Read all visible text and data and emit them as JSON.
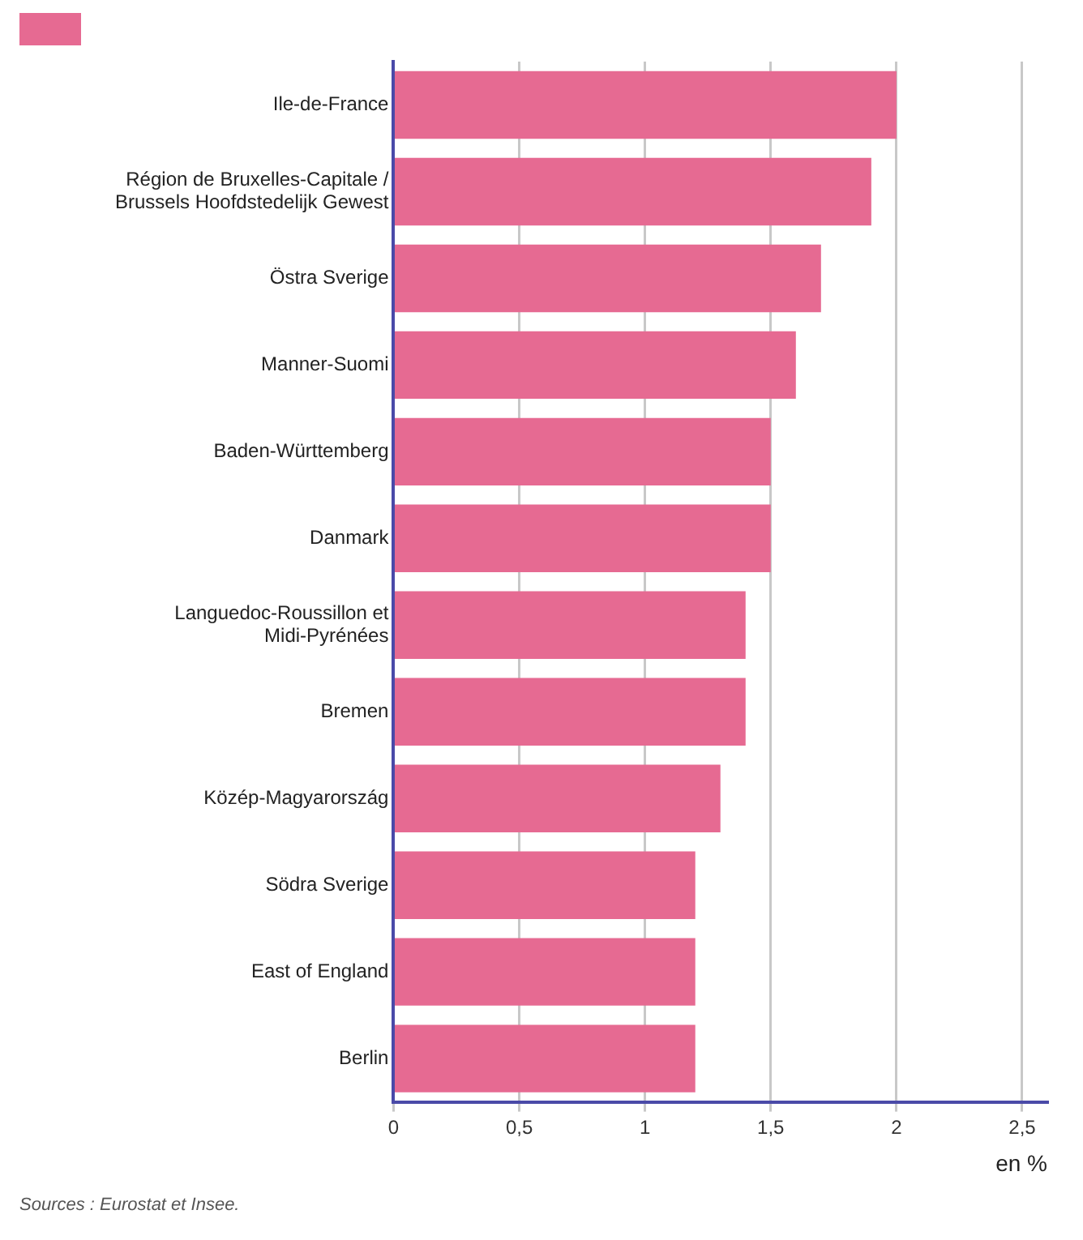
{
  "chart_data": {
    "type": "bar",
    "orientation": "horizontal",
    "categories": [
      "Ile-de-France",
      "Région de Bruxelles-Capitale / Brussels Hoofdstedelijk Gewest",
      "Östra Sverige",
      "Manner-Suomi",
      "Baden-Württemberg",
      "Danmark",
      "Languedoc-Roussillon et Midi-Pyrénées",
      "Bremen",
      "Közép-Magyarország",
      "Södra Sverige",
      "East of England",
      "Berlin"
    ],
    "values": [
      2,
      1.9,
      1.7,
      1.6,
      1.5,
      1.5,
      1.4,
      1.4,
      1.3,
      1.2,
      1.2,
      1.2
    ],
    "color": "#e66a92",
    "xlim": [
      0,
      2.6
    ],
    "xticks": [
      0,
      {
        "value": 0.5,
        "label": "0,5"
      },
      1,
      {
        "value": 1.5,
        "label": "1,5"
      },
      2,
      {
        "value": 2.5,
        "label": "2,5"
      }
    ],
    "xlabel": "en %",
    "grid": "x",
    "annotations": [
      "Sources : Eurostat et Insee."
    ]
  }
}
